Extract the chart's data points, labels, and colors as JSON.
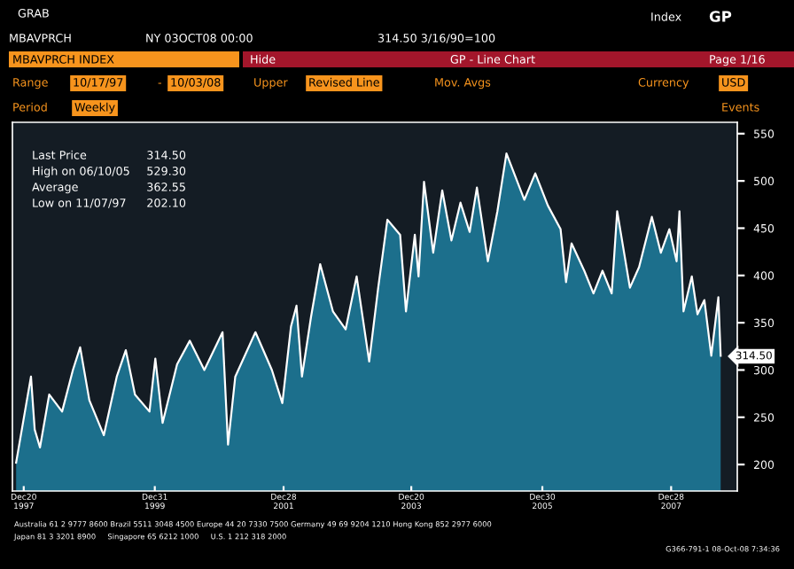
{
  "chart_data": {
    "type": "area",
    "x": [
      "1997-11-07",
      "1998-01-30",
      "1998-02-20",
      "1998-03-22",
      "1998-05-13",
      "1998-07-25",
      "1998-09-24",
      "1998-11-04",
      "1998-12-26",
      "1999-03-18",
      "1999-05-30",
      "1999-07-20",
      "1999-09-10",
      "1999-12-01",
      "2000-01-03",
      "2000-02-13",
      "2000-05-05",
      "2000-07-16",
      "2000-10-06",
      "2001-01-17",
      "2001-02-17",
      "2001-03-30",
      "2001-07-22",
      "2001-10-23",
      "2001-12-21",
      "2002-02-08",
      "2002-03-11",
      "2002-04-11",
      "2002-06-01",
      "2002-07-23",
      "2002-10-03",
      "2002-12-14",
      "2003-02-14",
      "2003-04-26",
      "2003-06-16",
      "2003-08-07",
      "2003-10-18",
      "2003-11-20",
      "2004-01-09",
      "2004-01-30",
      "2004-03-01",
      "2004-04-22",
      "2004-06-12",
      "2004-08-03",
      "2004-09-23",
      "2004-11-14",
      "2004-12-25",
      "2005-02-25",
      "2005-04-20",
      "2005-06-10",
      "2005-09-19",
      "2005-11-20",
      "2006-01-30",
      "2006-04-12",
      "2006-05-13",
      "2006-06-13",
      "2006-08-24",
      "2006-10-15",
      "2006-12-05",
      "2007-01-26",
      "2007-02-26",
      "2007-05-09",
      "2007-06-30",
      "2007-09-10",
      "2007-10-31",
      "2007-12-18",
      "2008-01-28",
      "2008-02-13",
      "2008-03-07",
      "2008-04-23",
      "2008-05-25",
      "2008-07-03",
      "2008-08-11",
      "2008-09-20",
      "2008-10-03"
    ],
    "series": [
      {
        "color": "#1c6f8c",
        "values": [
          202,
          293,
          237,
          218,
          274,
          256,
          300,
          324,
          268,
          231,
          293,
          321,
          274,
          256,
          312,
          244,
          306,
          331,
          300,
          340,
          221,
          293,
          340,
          300,
          265,
          346,
          368,
          293,
          356,
          412,
          362,
          343,
          399,
          309,
          387,
          459,
          443,
          362,
          443,
          399,
          499,
          424,
          490,
          437,
          477,
          446,
          493,
          415,
          468,
          529,
          480,
          508,
          474,
          449,
          393,
          434,
          405,
          381,
          405,
          381,
          468,
          387,
          409,
          462,
          424,
          449,
          415,
          468,
          362,
          399,
          359,
          374,
          315,
          377,
          315
        ]
      }
    ],
    "xlim": [
      "1997-10-17",
      "2009-01-05"
    ],
    "ylim": [
      172,
      562
    ],
    "yticks": [
      200,
      250,
      300,
      350,
      400,
      450,
      500,
      550
    ],
    "xticks": [
      {
        "value": "1997-12-20",
        "label": "Dec20\n1997"
      },
      {
        "value": "1999-12-31",
        "label": "Dec31\n1999"
      },
      {
        "value": "2001-12-28",
        "label": "Dec28\n2001"
      },
      {
        "value": "2003-12-20",
        "label": "Dec20\n2003"
      },
      {
        "value": "2005-12-30",
        "label": "Dec30\n2005"
      },
      {
        "value": "2007-12-28",
        "label": "Dec28\n2007"
      }
    ],
    "annotations": [
      "GRAB",
      "MBAVPRCH",
      "NY 03OCT08 00:00",
      "314.50 3/16/90=100",
      "Index",
      "GP",
      "MBAVPRCH INDEX",
      "Hide",
      "GP - Line Chart",
      "Page 1/16",
      "Range",
      "10/17/97",
      "-",
      "10/03/08",
      "Upper",
      "Revised Line",
      "Mov. Avgs",
      "Currency",
      "USD",
      "Period",
      "Weekly",
      "Events",
      "Last Price",
      "314.50",
      "High on 06/10/05",
      "529.30",
      "Average",
      "362.55",
      "Low on 11/07/97",
      "202.10",
      "Australia 61 2 9777 8600 Brazil 5511 3048 4500 Europe 44 20 7330 7500 Germany 49 69 9204 1210 Hong Kong 852 2977 6000",
      "Japan 81 3 3201 8900     Singapore 65 6212 1000     U.S. 1 212 318 2000",
      "G366-791-1 08-Oct-08 7:34:36",
      {
        "text": "314.50",
        "x": "2008-10-03",
        "y": 314.5
      }
    ]
  }
}
